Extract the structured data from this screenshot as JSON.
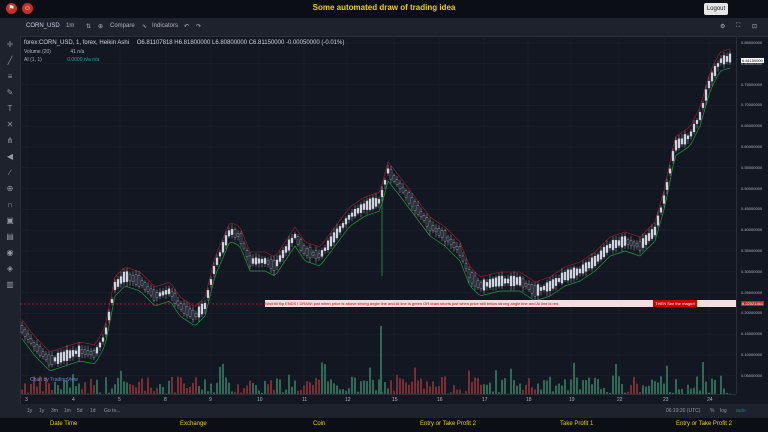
{
  "header": {
    "title": "Some automated draw of trading idea",
    "logout_label": "Logout",
    "left_icon_1": "flag-icon",
    "left_icon_2": "user-icon"
  },
  "toolbar": {
    "symbol": "CORN_USD",
    "interval": "1m",
    "compare_label": "Compare",
    "indicators_label": "Indicators"
  },
  "legend": {
    "main": "forex:CORN_USD, 1, forex, Heikin Ashi",
    "ohlc": "O6.81107818  H6.81800000  L6.80800000  C6.81150000  -0.00050000 (-0.01%)",
    "volume": "Volume (20)",
    "volume_vals": "41  n/a",
    "ai": "AI (1, 1)",
    "ai_vals": "0.0000  n/a  n/a"
  },
  "yaxis": {
    "labels": [
      "0.85000000",
      "0.80000000",
      "0.75000000",
      "0.70000000",
      "0.65000000",
      "0.60000000",
      "0.55000000",
      "0.50000000",
      "0.45000000",
      "0.40000000",
      "0.35000000",
      "0.30000000",
      "0.25000000",
      "0.20000000",
      "0.15000000",
      "0.10000000",
      "0.05000000"
    ],
    "current": "6.81150000",
    "marker": "6.22021461"
  },
  "xaxis": {
    "labels": [
      "3",
      "4",
      "5",
      "8",
      "9",
      "10",
      "11",
      "12",
      "15",
      "16",
      "17",
      "18",
      "19",
      "22",
      "23",
      "24"
    ]
  },
  "bottombar": {
    "ranges": [
      "1y",
      "1y",
      "3m",
      "1m",
      "5d",
      "1d"
    ],
    "goto": "Go to...",
    "time": "06:19:20 (UTC)",
    "pct": "%",
    "log": "log",
    "auto": "auto"
  },
  "banner": {
    "text": "Wait till flip ENDS  !   DRAW: just when  price is above strong angle line and AI line is green      OR       draw shorts just when price still below strong angle line and AI line is red",
    "right": "THEN See the magic!!"
  },
  "tvlogo": "Chart by TradingView",
  "footer": {
    "links": [
      "Date Time",
      "Exchange",
      "Coin",
      "Entry or Take Profit 2",
      "Take Profit 1",
      "Entry or Take Profit 2"
    ]
  },
  "colors": {
    "up": "#26a69a",
    "down": "#ef5350",
    "candle": "#d1d4dc",
    "accent": "#f0d000"
  }
}
